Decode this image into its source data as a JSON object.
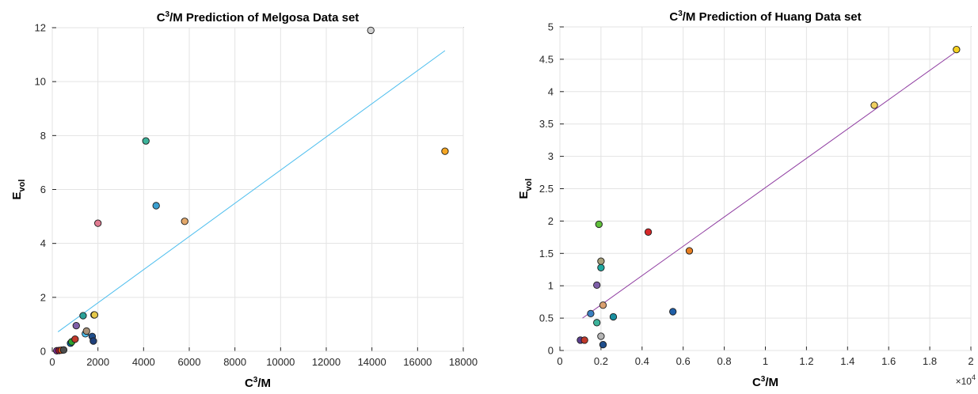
{
  "chart_data": [
    {
      "type": "scatter",
      "title_prefix": "C",
      "title_sup": "3",
      "title_rest": "/M Prediction of Melgosa Data set",
      "xlabel_prefix": "C",
      "xlabel_sup": "3",
      "xlabel_rest": "/M",
      "ylabel_main": "E",
      "ylabel_sub": "vol",
      "xlim": [
        0,
        18000
      ],
      "ylim": [
        0,
        12
      ],
      "xticks": [
        "0",
        "2000",
        "4000",
        "6000",
        "8000",
        "10000",
        "12000",
        "14000",
        "16000",
        "18000"
      ],
      "yticks": [
        "0",
        "2",
        "4",
        "6",
        "8",
        "10",
        "12"
      ],
      "grid": true,
      "fit_line": {
        "x": [
          250,
          17200
        ],
        "y": [
          0.72,
          11.15
        ],
        "color": "#4dbeee"
      },
      "points": [
        {
          "x": 200,
          "y": 0.02,
          "color": "#7e2f8e"
        },
        {
          "x": 300,
          "y": 0.03,
          "color": "#a2142f"
        },
        {
          "x": 400,
          "y": 0.04,
          "color": "#d95319"
        },
        {
          "x": 500,
          "y": 0.05,
          "color": "#4d4d4d"
        },
        {
          "x": 800,
          "y": 0.3,
          "color": "#0072bd"
        },
        {
          "x": 850,
          "y": 0.35,
          "color": "#2ca02c"
        },
        {
          "x": 1000,
          "y": 0.45,
          "color": "#c0392b"
        },
        {
          "x": 1050,
          "y": 0.95,
          "color": "#7e5fa8"
        },
        {
          "x": 1350,
          "y": 1.32,
          "color": "#2aa198"
        },
        {
          "x": 1450,
          "y": 0.65,
          "color": "#4dbeee"
        },
        {
          "x": 1500,
          "y": 0.75,
          "color": "#a89279"
        },
        {
          "x": 1750,
          "y": 0.55,
          "color": "#1f4e8c"
        },
        {
          "x": 1800,
          "y": 0.38,
          "color": "#1e3f7a"
        },
        {
          "x": 1830,
          "y": 1.35,
          "color": "#b5b5b5"
        },
        {
          "x": 1850,
          "y": 1.35,
          "color": "#e5c84a"
        },
        {
          "x": 2000,
          "y": 4.75,
          "color": "#e07b91"
        },
        {
          "x": 4100,
          "y": 7.8,
          "color": "#3cb39a"
        },
        {
          "x": 4550,
          "y": 5.4,
          "color": "#3a9fd0"
        },
        {
          "x": 5800,
          "y": 4.82,
          "color": "#e3a86a"
        },
        {
          "x": 13950,
          "y": 11.9,
          "color": "#d0d0d0"
        },
        {
          "x": 17200,
          "y": 7.42,
          "color": "#f5a623"
        }
      ]
    },
    {
      "type": "scatter",
      "title_prefix": "C",
      "title_sup": "3",
      "title_rest": "/M Prediction of Huang Data set",
      "xlabel_prefix": "C",
      "xlabel_sup": "3",
      "xlabel_rest": "/M",
      "ylabel_main": "E",
      "ylabel_sub": "vol",
      "xlim": [
        0,
        2
      ],
      "ylim": [
        0,
        5
      ],
      "x_exponent_base": "×10",
      "x_exponent_power": "4",
      "xticks": [
        "0",
        "0.2",
        "0.4",
        "0.6",
        "0.8",
        "1",
        "1.2",
        "1.4",
        "1.6",
        "1.8",
        "2"
      ],
      "yticks": [
        "0",
        "0.5",
        "1",
        "1.5",
        "2",
        "2.5",
        "3",
        "3.5",
        "4",
        "4.5",
        "5"
      ],
      "grid": true,
      "fit_line": {
        "x": [
          0.11,
          1.92
        ],
        "y": [
          0.5,
          4.6
        ],
        "color": "#8e3ba0"
      },
      "points": [
        {
          "x": 0.1,
          "y": 0.16,
          "color": "#5a3e8c"
        },
        {
          "x": 0.12,
          "y": 0.16,
          "color": "#c0392b"
        },
        {
          "x": 0.15,
          "y": 0.57,
          "color": "#3a7fc0"
        },
        {
          "x": 0.18,
          "y": 0.43,
          "color": "#3cb39a"
        },
        {
          "x": 0.18,
          "y": 1.01,
          "color": "#7e5fa8"
        },
        {
          "x": 0.19,
          "y": 1.95,
          "color": "#5fbf3a"
        },
        {
          "x": 0.2,
          "y": 0.22,
          "color": "#b5b5b5"
        },
        {
          "x": 0.2,
          "y": 1.28,
          "color": "#1fa8a0"
        },
        {
          "x": 0.2,
          "y": 1.38,
          "color": "#a8a07a"
        },
        {
          "x": 0.21,
          "y": 0.09,
          "color": "#1f4e8c"
        },
        {
          "x": 0.21,
          "y": 0.7,
          "color": "#d9a070"
        },
        {
          "x": 0.26,
          "y": 0.52,
          "color": "#1a8fa0"
        },
        {
          "x": 0.43,
          "y": 1.83,
          "color": "#d62728"
        },
        {
          "x": 0.55,
          "y": 0.6,
          "color": "#1f5fa8"
        },
        {
          "x": 0.63,
          "y": 1.54,
          "color": "#e67e22"
        },
        {
          "x": 1.53,
          "y": 3.79,
          "color": "#f0d060"
        },
        {
          "x": 1.93,
          "y": 4.65,
          "color": "#f5d020"
        }
      ]
    }
  ]
}
